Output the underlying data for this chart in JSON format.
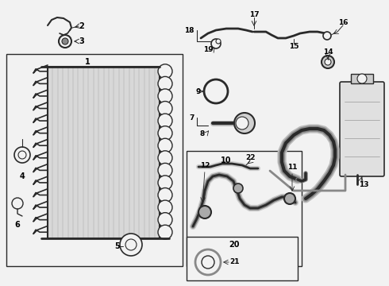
{
  "bg_color": "#f2f2f2",
  "line_color": "#2a2a2a",
  "white": "#ffffff",
  "gray_fill": "#e0e0e0",
  "dark_gray": "#555555",
  "med_gray": "#888888"
}
